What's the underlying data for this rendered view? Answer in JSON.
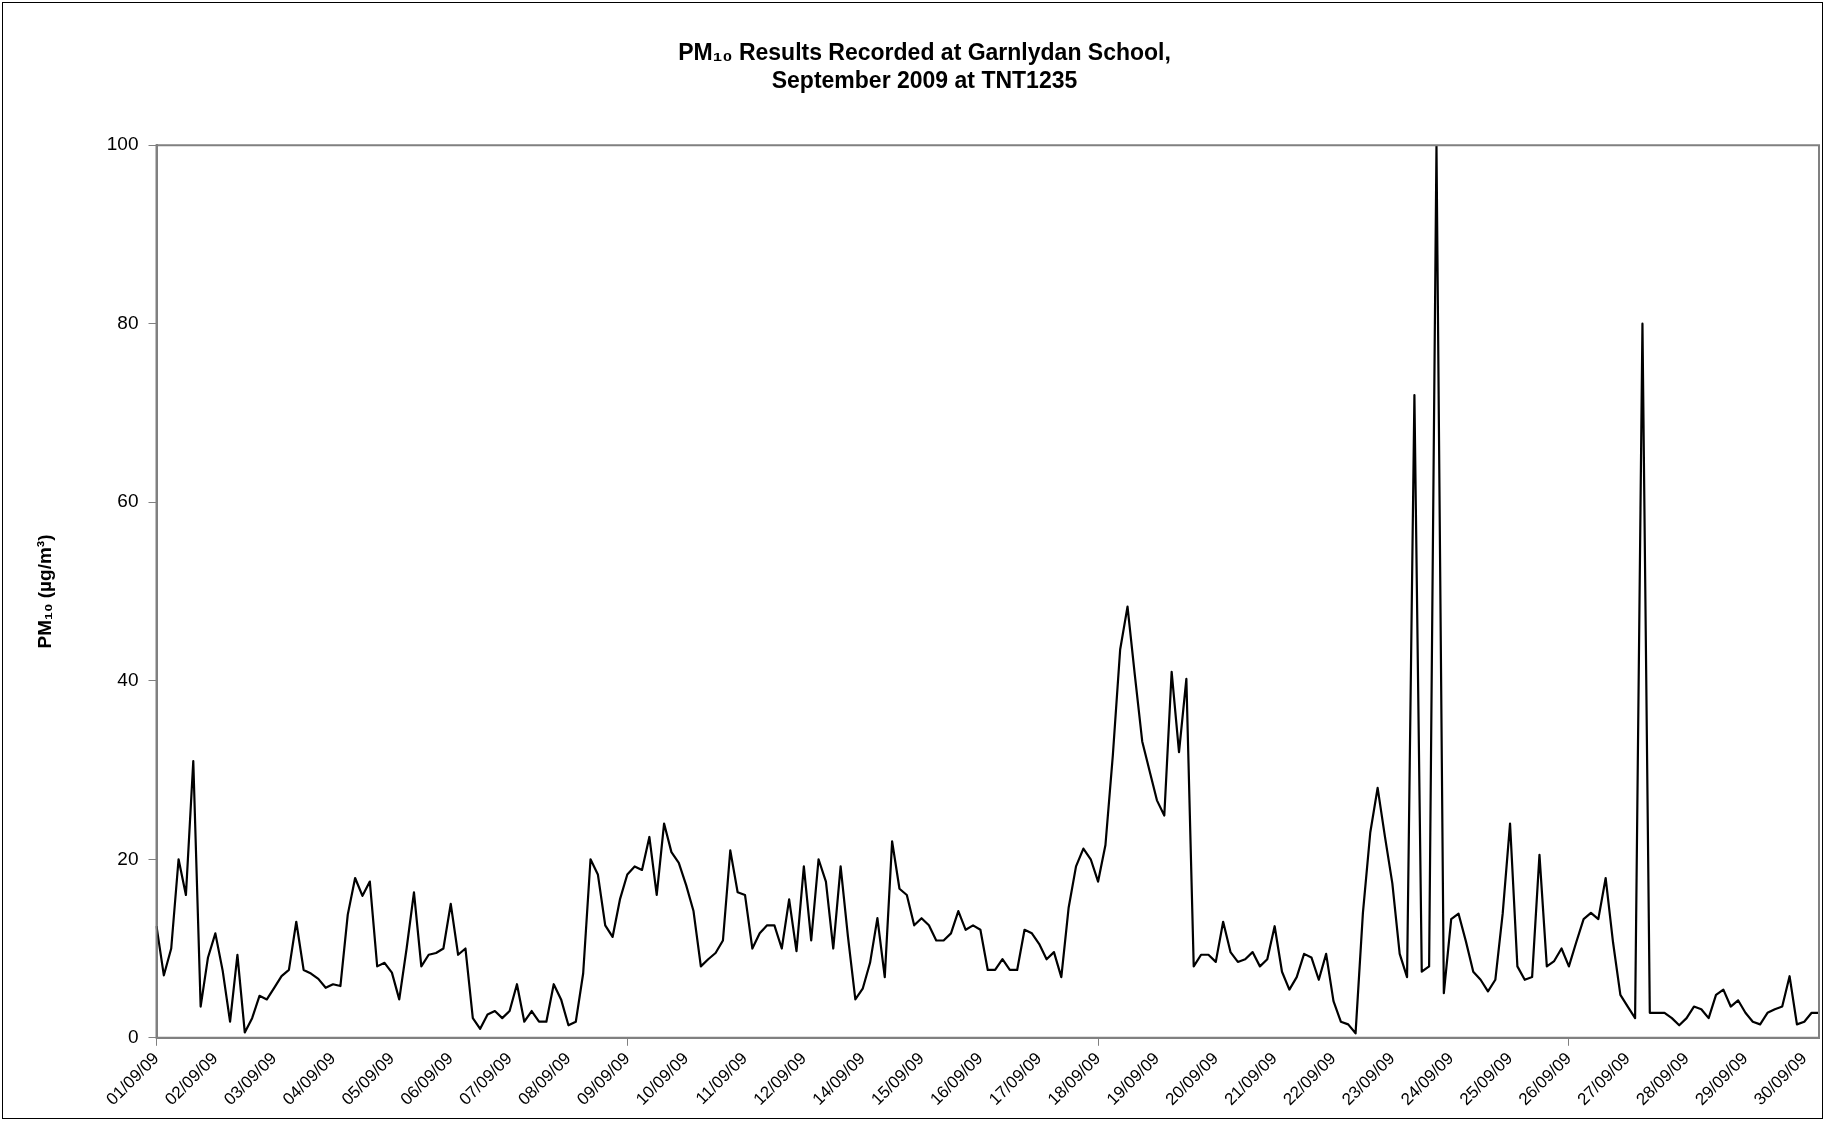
{
  "chart_data": {
    "type": "line",
    "title": "PM₁₀ Results Recorded at Garnlydan School,\nSeptember 2009 at TNT1235",
    "ylabel": "PM₁₀ (µg/m³)",
    "categories": [
      "01/09/09",
      null,
      null,
      null,
      null,
      null,
      null,
      null,
      "02/09/09",
      null,
      null,
      null,
      null,
      null,
      null,
      null,
      "03/09/09",
      null,
      null,
      null,
      null,
      null,
      null,
      null,
      "04/09/09",
      null,
      null,
      null,
      null,
      null,
      null,
      null,
      "05/09/09",
      null,
      null,
      null,
      null,
      null,
      null,
      null,
      "06/09/09",
      null,
      null,
      null,
      null,
      null,
      null,
      null,
      "07/09/09",
      null,
      null,
      null,
      null,
      null,
      null,
      null,
      "08/09/09",
      null,
      null,
      null,
      null,
      null,
      null,
      null,
      "09/09/09",
      null,
      null,
      null,
      null,
      null,
      null,
      null,
      "10/09/09",
      null,
      null,
      null,
      null,
      null,
      null,
      null,
      "11/09/09",
      null,
      null,
      null,
      null,
      null,
      null,
      null,
      "12/09/09",
      null,
      null,
      null,
      null,
      null,
      null,
      null,
      "14/09/09",
      null,
      null,
      null,
      null,
      null,
      null,
      null,
      "15/09/09",
      null,
      null,
      null,
      null,
      null,
      null,
      null,
      "16/09/09",
      null,
      null,
      null,
      null,
      null,
      null,
      null,
      "17/09/09",
      null,
      null,
      null,
      null,
      null,
      null,
      null,
      "18/09/09",
      null,
      null,
      null,
      null,
      null,
      null,
      null,
      "19/09/09",
      null,
      null,
      null,
      null,
      null,
      null,
      null,
      "20/09/09",
      null,
      null,
      null,
      null,
      null,
      null,
      null,
      "21/09/09",
      null,
      null,
      null,
      null,
      null,
      null,
      null,
      "22/09/09",
      null,
      null,
      null,
      null,
      null,
      null,
      null,
      "23/09/09",
      null,
      null,
      null,
      null,
      null,
      null,
      null,
      "24/09/09",
      null,
      null,
      null,
      null,
      null,
      null,
      null,
      "25/09/09",
      null,
      null,
      null,
      null,
      null,
      null,
      null,
      "26/09/09",
      null,
      null,
      null,
      null,
      null,
      null,
      null,
      "27/09/09",
      null,
      null,
      null,
      null,
      null,
      null,
      null,
      "28/09/09",
      null,
      null,
      null,
      null,
      null,
      null,
      null,
      "29/09/09",
      null,
      null,
      null,
      null,
      null,
      null,
      null,
      "30/09/09",
      null,
      null
    ],
    "series": [
      {
        "color": "#000000",
        "values": [
          12.5,
          7,
          10,
          20,
          16,
          31,
          3.5,
          9,
          11.7,
          7.5,
          1.8,
          9.3,
          0.6,
          2.2,
          4.7,
          4.3,
          5.6,
          6.9,
          7.6,
          13,
          7.6,
          7.2,
          6.6,
          5.6,
          6,
          5.8,
          13.8,
          17.9,
          15.9,
          17.5,
          8,
          8.4,
          7.3,
          4.3,
          10,
          16.3,
          8,
          9.3,
          9.5,
          10,
          15,
          9.3,
          10,
          2.2,
          1,
          2.6,
          3,
          2.2,
          3,
          6,
          1.8,
          3,
          1.8,
          1.8,
          6,
          4.3,
          1.4,
          1.8,
          7.2,
          20,
          18.3,
          12.6,
          11.3,
          15.5,
          18.3,
          19.2,
          18.8,
          22.5,
          16,
          24,
          20.8,
          19.6,
          17.1,
          14.2,
          8,
          8.8,
          9.5,
          10.9,
          21,
          16.3,
          16,
          10,
          11.7,
          12.6,
          12.6,
          10,
          15.5,
          9.7,
          19.2,
          10.9,
          20,
          17.5,
          10,
          19.2,
          11.3,
          4.3,
          5.5,
          8.4,
          13.4,
          6.8,
          22,
          16.7,
          16,
          12.6,
          13.4,
          12.6,
          10.9,
          10.9,
          11.7,
          14.2,
          12.1,
          12.6,
          12.1,
          7.6,
          7.6,
          8.8,
          7.6,
          7.6,
          12.1,
          11.7,
          10.5,
          8.8,
          9.6,
          6.8,
          14.6,
          19.2,
          21.2,
          20,
          17.5,
          21.6,
          31.6,
          43.5,
          48.3,
          40.6,
          33.2,
          29.9,
          26.6,
          24.9,
          41,
          32,
          40.2,
          8,
          9.3,
          9.3,
          8.5,
          13,
          9.6,
          8.5,
          8.8,
          9.6,
          8,
          8.8,
          12.5,
          7.4,
          5.4,
          6.8,
          9.4,
          9,
          6.5,
          9.4,
          4.1,
          1.8,
          1.5,
          0.5,
          14,
          23,
          28,
          22.5,
          17.3,
          9.4,
          6.8,
          72,
          7.4,
          8,
          100,
          5,
          13.3,
          13.9,
          10.8,
          7.4,
          6.5,
          5.2,
          6.5,
          13.9,
          24,
          8,
          6.5,
          6.8,
          20.5,
          8,
          8.6,
          10,
          8,
          10.7,
          13.3,
          14,
          13.3,
          17.9,
          10.7,
          4.8,
          3.5,
          2.2,
          80,
          2.8,
          2.8,
          2.8,
          2.2,
          1.4,
          2.2,
          3.5,
          3.2,
          2.2,
          4.8,
          5.4,
          3.5,
          4.2,
          2.8,
          1.8,
          1.5,
          2.8,
          3.2,
          3.5,
          6.9,
          1.5,
          1.8,
          2.8,
          2.8
        ]
      }
    ],
    "ylim": [
      0,
      100
    ],
    "yticks": [
      0,
      20,
      40,
      60,
      80,
      100
    ]
  }
}
